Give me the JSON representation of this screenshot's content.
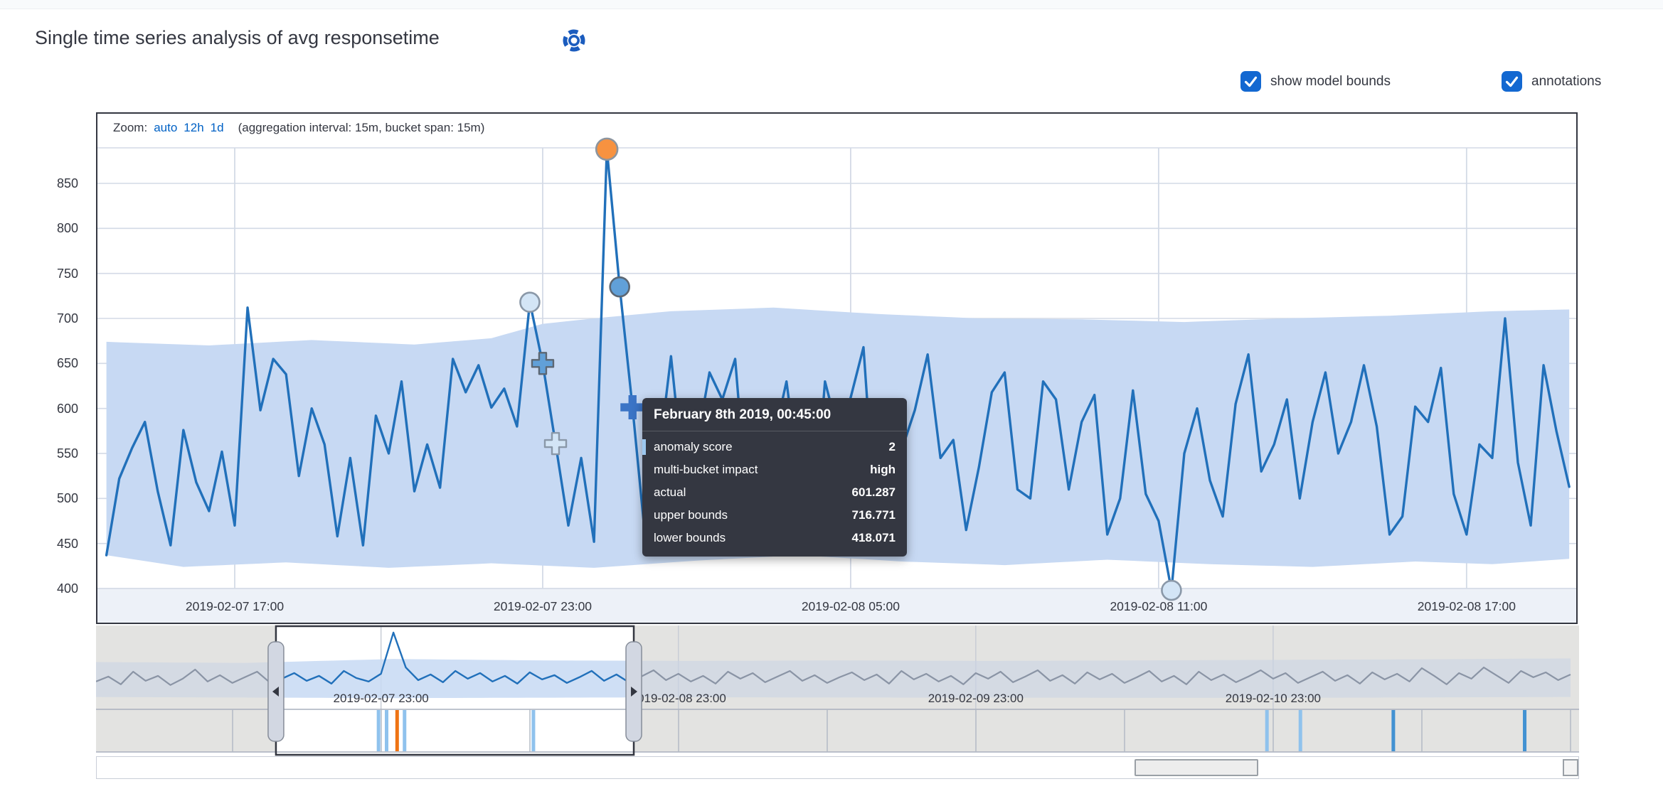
{
  "page": {
    "title": "Single time series analysis of avg responsetime"
  },
  "controls": {
    "model_bounds": {
      "label": "show model bounds",
      "checked": true
    },
    "annotations": {
      "label": "annotations",
      "checked": true
    }
  },
  "zoom_bar": {
    "label": "Zoom:",
    "links": [
      "auto",
      "12h",
      "1d"
    ],
    "interval_note": "(aggregation interval: 15m, bucket span: 15m)"
  },
  "tooltip": {
    "header": "February 8th 2019, 00:45:00",
    "rows": [
      {
        "label": "anomaly score",
        "value": "2",
        "marked": true
      },
      {
        "label": "multi-bucket impact",
        "value": "high"
      },
      {
        "label": "actual",
        "value": "601.287"
      },
      {
        "label": "upper bounds",
        "value": "716.771"
      },
      {
        "label": "lower bounds",
        "value": "418.071"
      }
    ]
  },
  "colors": {
    "accent_blue": "#1368d1",
    "link_blue": "#0061c5",
    "text": "#343741",
    "series_line": "#2170ba",
    "model_bounds_fill": "#c7d9f3",
    "context_gray_line": "#8a94a5",
    "context_gray_band": "#c9d3e4",
    "grid": "#d3dae6",
    "axis_strip_bg": "#edf1f8",
    "chart_border": "#343741",
    "lane_bg": "#e3e3e1",
    "tooltip_bg": "#343741",
    "severity_marker_bar": "#9cc7ee",
    "severity_fill": {
      "warning": "#d3e5f6",
      "minor": "#61a0d8",
      "critical": "#f79240",
      "selected": "#3b74c6"
    },
    "severity_stroke": {
      "warning": "#8a98a8",
      "minor": "#5c6773",
      "critical": "#8c959f",
      "selected": "#3b74c6"
    },
    "lane_colors": {
      "warning": "#8fc2ed",
      "minor": "#4392d2",
      "critical": "#ef7414"
    }
  },
  "chart_data": {
    "type": "line",
    "title": "avg responsetime",
    "main": {
      "start_time": "2019-02-07 14:30",
      "bucket_minutes": 15,
      "ylabel": "",
      "ylim": [
        400,
        850
      ],
      "y_ticks": [
        850,
        800,
        750,
        700,
        650,
        600,
        550,
        500,
        450,
        400
      ],
      "x_labels": [
        {
          "text": "2019-02-07 17:00",
          "bucket": 10
        },
        {
          "text": "2019-02-07 23:00",
          "bucket": 34
        },
        {
          "text": "2019-02-08 05:00",
          "bucket": 58
        },
        {
          "text": "2019-02-08 11:00",
          "bucket": 82
        },
        {
          "text": "2019-02-08 17:00",
          "bucket": 106
        }
      ],
      "values": [
        437,
        522,
        556,
        585,
        508,
        448,
        576,
        518,
        486,
        552,
        470,
        712,
        598,
        655,
        638,
        525,
        600,
        560,
        458,
        545,
        448,
        592,
        550,
        630,
        508,
        560,
        512,
        655,
        618,
        648,
        601,
        622,
        580,
        718,
        650,
        561,
        470,
        545,
        452,
        888,
        735,
        601.287,
        455,
        540,
        658,
        520,
        560,
        640,
        610,
        655,
        480,
        560,
        565,
        630,
        520,
        448,
        630,
        575,
        612,
        668,
        462,
        540,
        555,
        598,
        660,
        545,
        565,
        465,
        535,
        618,
        640,
        510,
        500,
        630,
        610,
        510,
        585,
        615,
        460,
        500,
        620,
        505,
        475,
        398,
        550,
        600,
        520,
        480,
        605,
        660,
        530,
        560,
        610,
        500,
        585,
        640,
        550,
        585,
        648,
        580,
        460,
        480,
        602,
        585,
        645,
        505,
        460,
        560,
        545,
        700,
        540,
        470,
        648,
        575,
        513
      ],
      "upper_bounds_anchors": [
        [
          0,
          674
        ],
        [
          8,
          670
        ],
        [
          16,
          676
        ],
        [
          24,
          671
        ],
        [
          30,
          678
        ],
        [
          34,
          694
        ],
        [
          38,
          700
        ],
        [
          44,
          708
        ],
        [
          52,
          712
        ],
        [
          60,
          705
        ],
        [
          68,
          700
        ],
        [
          76,
          699
        ],
        [
          84,
          696
        ],
        [
          92,
          700
        ],
        [
          100,
          703
        ],
        [
          108,
          708
        ],
        [
          114,
          710
        ]
      ],
      "lower_bounds_anchors": [
        [
          0,
          437
        ],
        [
          6,
          424
        ],
        [
          14,
          429
        ],
        [
          22,
          423
        ],
        [
          30,
          428
        ],
        [
          38,
          423
        ],
        [
          46,
          431
        ],
        [
          54,
          437
        ],
        [
          62,
          430
        ],
        [
          70,
          426
        ],
        [
          78,
          432
        ],
        [
          86,
          427
        ],
        [
          94,
          424
        ],
        [
          102,
          430
        ],
        [
          108,
          427
        ],
        [
          114,
          433
        ]
      ],
      "anomalies": [
        {
          "bucket": 33,
          "value": 718,
          "marker": "circle",
          "severity": "warning"
        },
        {
          "bucket": 34,
          "value": 650,
          "marker": "cross",
          "severity": "minor"
        },
        {
          "bucket": 35,
          "value": 561,
          "marker": "cross",
          "severity": "warning"
        },
        {
          "bucket": 39,
          "value": 888,
          "marker": "circle",
          "severity": "critical"
        },
        {
          "bucket": 40,
          "value": 735,
          "marker": "circle",
          "severity": "minor"
        },
        {
          "bucket": 41,
          "value": 601.287,
          "marker": "cross",
          "severity": "selected"
        },
        {
          "bucket": 83,
          "value": 398,
          "marker": "circle",
          "severity": "warning"
        }
      ]
    },
    "context": {
      "start_time": "2019-02-07 00:00",
      "bucket_minutes": 60,
      "x_labels": [
        {
          "text": "2019-02-07 23:00",
          "hour": 23
        },
        {
          "text": "2019-02-08 23:00",
          "hour": 47
        },
        {
          "text": "2019-02-09 23:00",
          "hour": 71
        },
        {
          "text": "2019-02-10 23:00",
          "hour": 95
        }
      ],
      "values": [
        540,
        575,
        520,
        610,
        545,
        580,
        515,
        560,
        625,
        540,
        585,
        530,
        570,
        610,
        535,
        560,
        600,
        545,
        580,
        525,
        615,
        565,
        540,
        595,
        888,
        640,
        550,
        590,
        535,
        615,
        560,
        600,
        540,
        580,
        525,
        605,
        555,
        585,
        530,
        570,
        615,
        545,
        590,
        535,
        575,
        620,
        550,
        595,
        540,
        580,
        525,
        610,
        560,
        600,
        535,
        575,
        615,
        545,
        585,
        530,
        570,
        605,
        550,
        590,
        525,
        615,
        555,
        595,
        540,
        580,
        520,
        600,
        560,
        610,
        535,
        575,
        620,
        545,
        585,
        525,
        605,
        555,
        595,
        530,
        570,
        615,
        540,
        580,
        520,
        610,
        550,
        590,
        535,
        575,
        620,
        560,
        600,
        530,
        570,
        610,
        545,
        585,
        525,
        605,
        555,
        595,
        540,
        635,
        580,
        520,
        600,
        560,
        640,
        585,
        530,
        615,
        570,
        605,
        550,
        590
      ],
      "upper_bounds_anchors": [
        [
          0,
          678
        ],
        [
          12,
          672
        ],
        [
          24,
          700
        ],
        [
          36,
          690
        ],
        [
          48,
          686
        ],
        [
          60,
          690
        ],
        [
          72,
          686
        ],
        [
          84,
          690
        ],
        [
          96,
          694
        ],
        [
          108,
          698
        ],
        [
          119,
          704
        ]
      ],
      "lower_bounds_anchors": [
        [
          0,
          430
        ],
        [
          24,
          422
        ],
        [
          48,
          428
        ],
        [
          72,
          425
        ],
        [
          96,
          424
        ],
        [
          119,
          430
        ]
      ],
      "selection": {
        "from_hour": 14.52,
        "to_hour": 43.4
      },
      "annotations": [
        {
          "hour": 22.8,
          "severity": "warning"
        },
        {
          "hour": 23.45,
          "severity": "warning"
        },
        {
          "hour": 24.3,
          "severity": "critical"
        },
        {
          "hour": 24.9,
          "severity": "warning"
        },
        {
          "hour": 35.3,
          "severity": "warning"
        },
        {
          "hour": 94.5,
          "severity": "warning"
        },
        {
          "hour": 97.2,
          "severity": "warning"
        },
        {
          "hour": 104.7,
          "severity": "minor"
        },
        {
          "hour": 115.3,
          "severity": "minor"
        }
      ]
    }
  }
}
